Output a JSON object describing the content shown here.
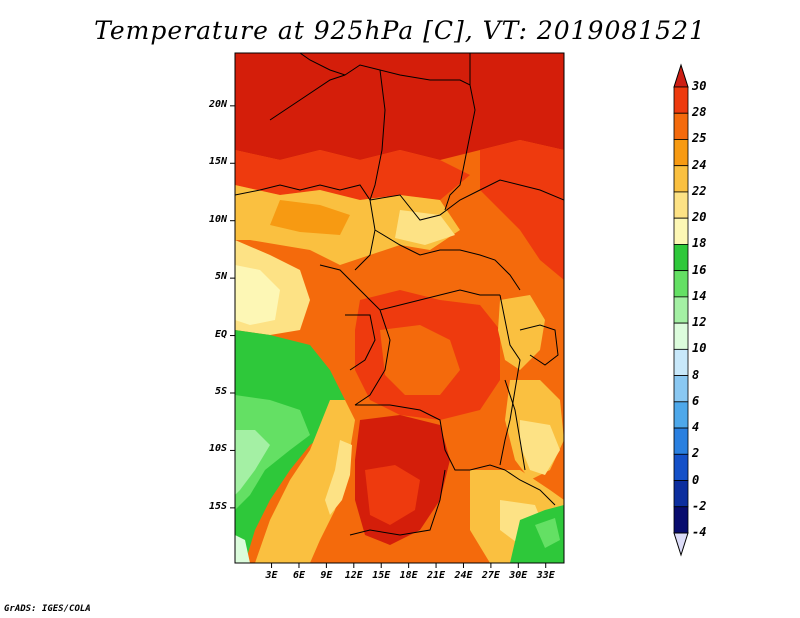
{
  "title": "Temperature at 925hPa [C], VT: 2019081521",
  "credit": "GrADS: IGES/COLA",
  "map": {
    "lon_range": [
      -1,
      35
    ],
    "lat_range": [
      -19.8,
      24.6
    ],
    "lat_ticks": [
      "20N",
      "15N",
      "10N",
      "5N",
      "EQ",
      "5S",
      "10S",
      "15S"
    ],
    "lat_tick_values": [
      20,
      15,
      10,
      5,
      0,
      -5,
      -10,
      -15
    ],
    "lon_ticks": [
      "3E",
      "6E",
      "9E",
      "12E",
      "15E",
      "18E",
      "21E",
      "24E",
      "27E",
      "30E",
      "33E"
    ],
    "lon_tick_values": [
      3,
      6,
      9,
      12,
      15,
      18,
      21,
      24,
      27,
      30,
      33
    ]
  },
  "colorbar": {
    "labels": [
      "30",
      "28",
      "25",
      "24",
      "22",
      "20",
      "18",
      "16",
      "14",
      "12",
      "10",
      "8",
      "6",
      "4",
      "2",
      "0",
      "-2",
      "-4"
    ],
    "colors": [
      "#d41e0a",
      "#ee3a0e",
      "#f46a0c",
      "#f79a12",
      "#fac040",
      "#fde285",
      "#fdf7b5",
      "#2ec83a",
      "#64e064",
      "#a4f0a4",
      "#dcfcdc",
      "#c8e8fa",
      "#8ac8f2",
      "#4ea8ea",
      "#2a80e0",
      "#1450c8",
      "#0c2e9e",
      "#080c6e"
    ],
    "top_color": "#cd1e14",
    "bottom_color": "#dcdcf8"
  }
}
